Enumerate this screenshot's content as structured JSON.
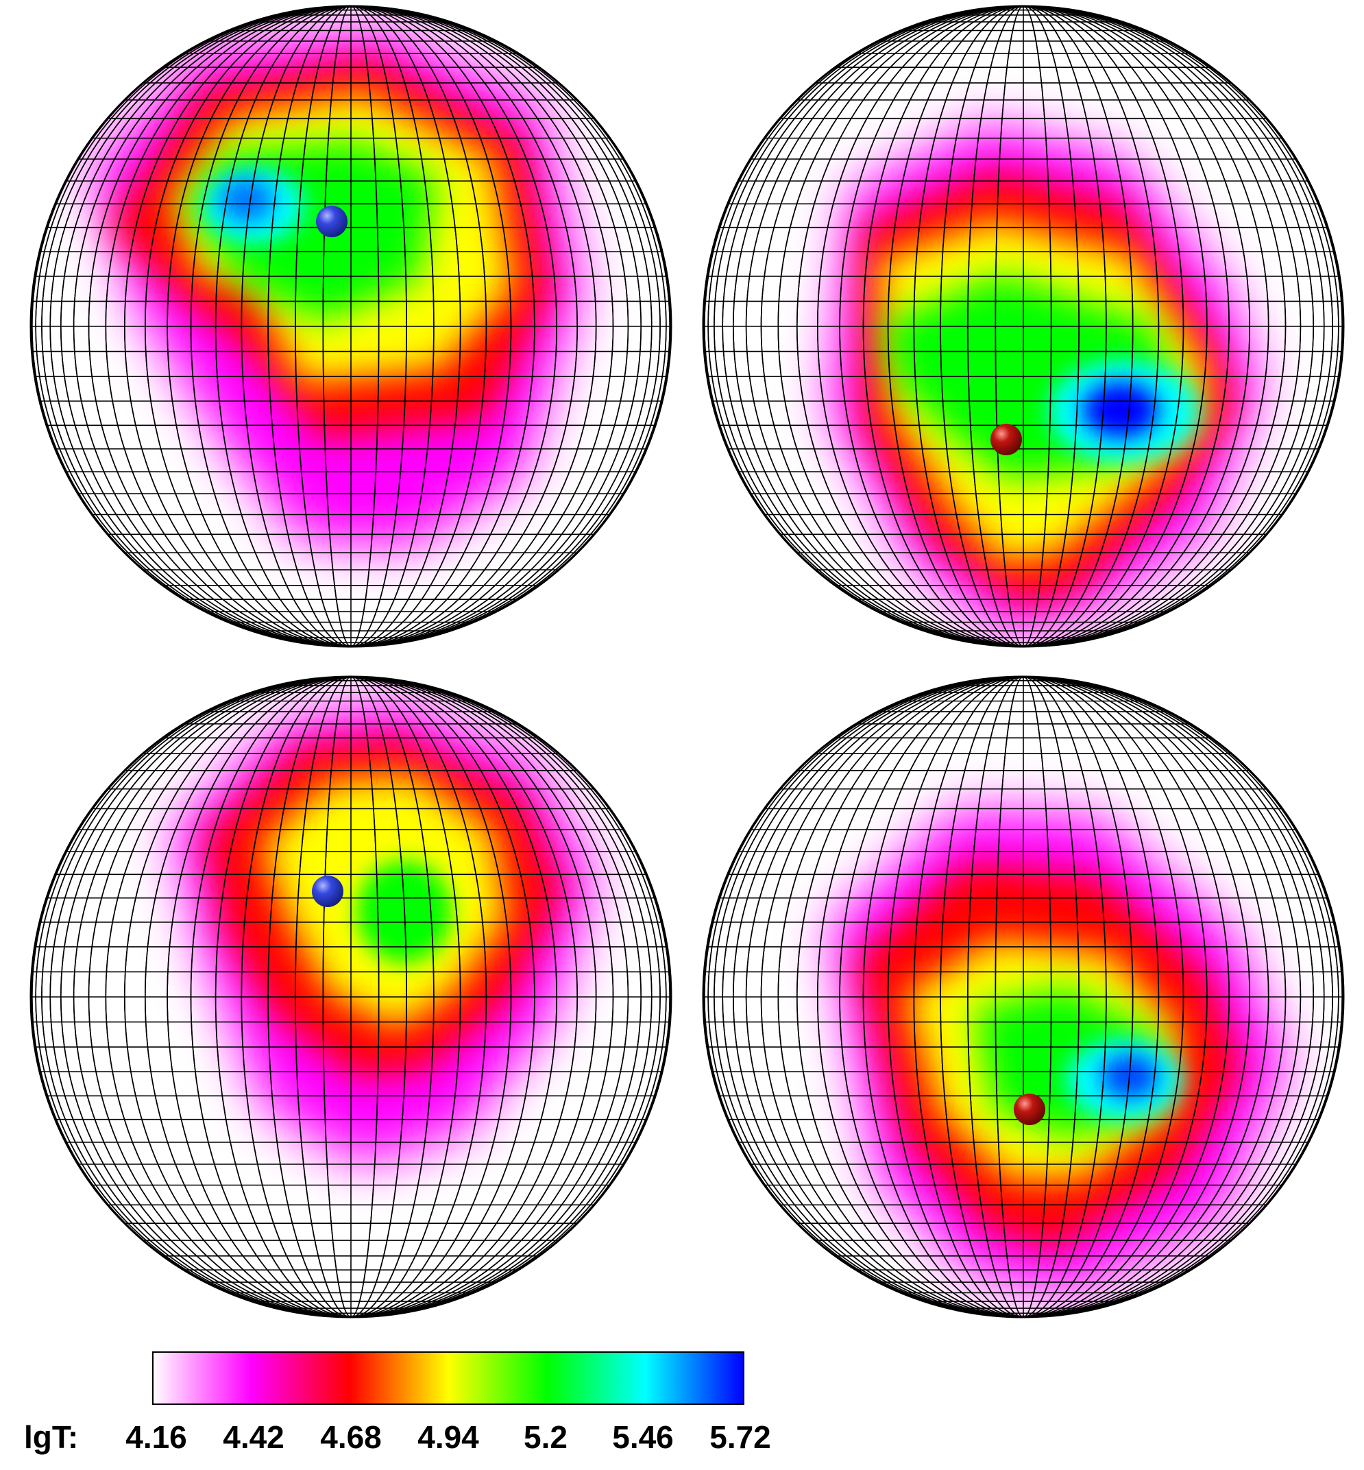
{
  "legend": {
    "label": "lgT:",
    "ticks": [
      "4.16",
      "4.42",
      "4.68",
      "4.94",
      "5.2",
      "5.46",
      "5.72"
    ],
    "colormap": [
      "#ffffff",
      "#ff00ff",
      "#ff0000",
      "#ffff00",
      "#00ff00",
      "#00ffff",
      "#0000ff"
    ]
  },
  "spheres": [
    {
      "name": "sphere-top-left",
      "marker": {
        "color": "blue",
        "fill": "#2a3fd6"
      },
      "hotspot": "upper-left",
      "pattern": [
        {
          "value": 4.42,
          "shape": "halo"
        },
        {
          "value": 4.68,
          "shape": "band"
        },
        {
          "value": 4.94,
          "shape": "region"
        },
        {
          "value": 5.2,
          "shape": "core"
        },
        {
          "value": 5.46,
          "shape": "spot"
        },
        {
          "value": 5.6,
          "shape": "peak"
        }
      ]
    },
    {
      "name": "sphere-top-right",
      "marker": {
        "color": "red",
        "fill": "#b3100d"
      },
      "hotspot": "lower-right",
      "pattern": [
        {
          "value": 4.42,
          "shape": "halo"
        },
        {
          "value": 4.68,
          "shape": "band"
        },
        {
          "value": 4.94,
          "shape": "region"
        },
        {
          "value": 5.2,
          "shape": "core"
        },
        {
          "value": 5.46,
          "shape": "spot"
        },
        {
          "value": 5.72,
          "shape": "peak"
        }
      ]
    },
    {
      "name": "sphere-bottom-left",
      "marker": {
        "color": "blue",
        "fill": "#2a3fd6"
      },
      "hotspot": "center",
      "pattern": [
        {
          "value": 4.42,
          "shape": "halo"
        },
        {
          "value": 4.68,
          "shape": "band"
        },
        {
          "value": 4.94,
          "shape": "region"
        },
        {
          "value": 5.2,
          "shape": "core"
        }
      ]
    },
    {
      "name": "sphere-bottom-right",
      "marker": {
        "color": "red",
        "fill": "#b3100d"
      },
      "hotspot": "lower-right",
      "pattern": [
        {
          "value": 4.42,
          "shape": "halo"
        },
        {
          "value": 4.68,
          "shape": "band"
        },
        {
          "value": 4.94,
          "shape": "region"
        },
        {
          "value": 5.2,
          "shape": "core"
        },
        {
          "value": 5.46,
          "shape": "spot"
        },
        {
          "value": 5.65,
          "shape": "peak"
        }
      ]
    }
  ]
}
